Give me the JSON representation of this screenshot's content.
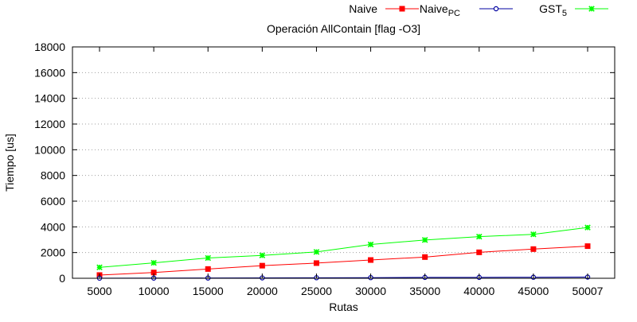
{
  "chart_data": {
    "type": "line",
    "title": "Operación AllContain [flag -O3]",
    "xlabel": "Rutas",
    "ylabel": "Tiempo [us]",
    "x": [
      5000,
      10000,
      15000,
      20000,
      25000,
      30000,
      35000,
      40000,
      45000,
      50007
    ],
    "xticks": [
      "5000",
      "10000",
      "15000",
      "20000",
      "25000",
      "30000",
      "35000",
      "40000",
      "45000",
      "50007"
    ],
    "ylim": [
      0,
      18000
    ],
    "yticks": [
      "0",
      "2000",
      "4000",
      "6000",
      "8000",
      "10000",
      "12000",
      "14000",
      "16000",
      "18000"
    ],
    "grid": "horizontal dotted",
    "legend_position": "top",
    "series": [
      {
        "name": "Naive",
        "name_subscript": "",
        "color": "#ff0000",
        "marker": "square",
        "values": [
          250,
          450,
          720,
          980,
          1180,
          1420,
          1650,
          2020,
          2270,
          2500
        ]
      },
      {
        "name": "Naive",
        "name_subscript": "PC",
        "color": "#0000a0",
        "marker": "circle",
        "values": [
          10,
          15,
          20,
          30,
          40,
          50,
          70,
          70,
          80,
          90
        ]
      },
      {
        "name": "GST",
        "name_subscript": "5",
        "color": "#00ff00",
        "marker": "star",
        "values": [
          850,
          1200,
          1580,
          1780,
          2050,
          2630,
          2980,
          3240,
          3420,
          3950
        ]
      }
    ]
  }
}
